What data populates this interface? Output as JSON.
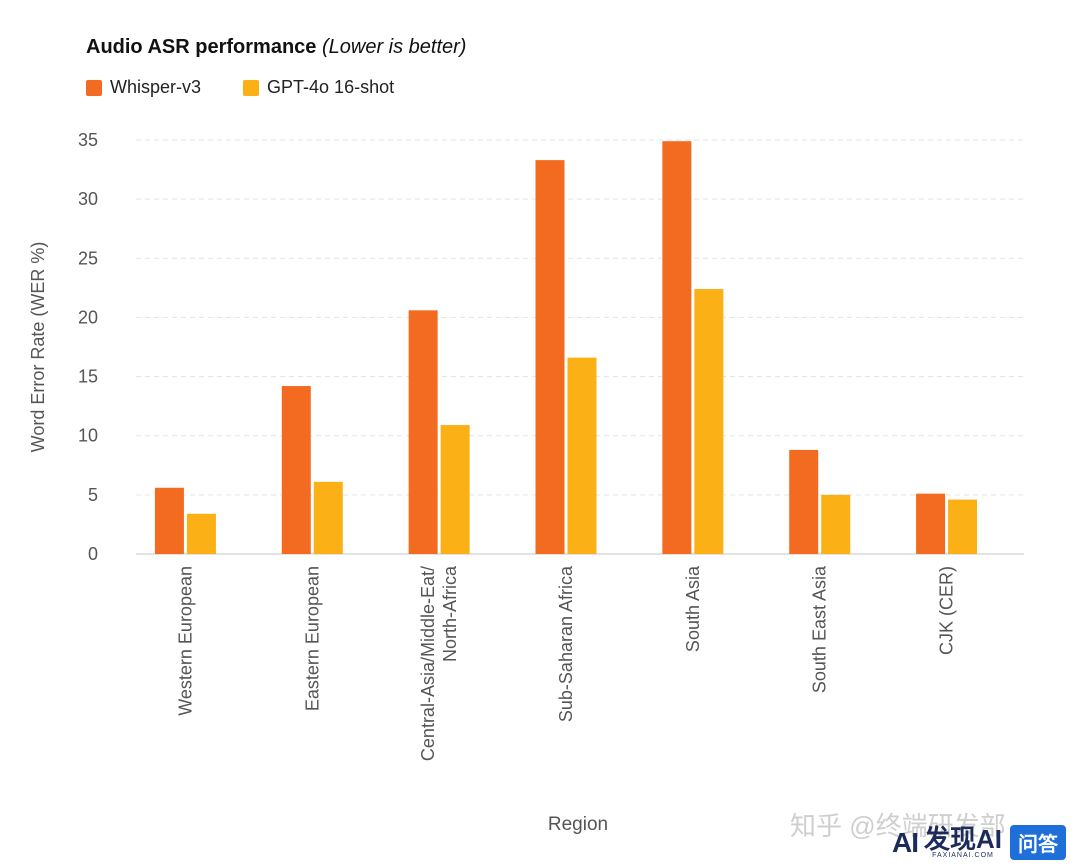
{
  "chart_data": {
    "type": "bar",
    "title": "Audio ASR performance",
    "subtitle": "(Lower is better)",
    "xlabel": "Region",
    "ylabel": "Word Error Rate (WER %)",
    "ylim": [
      0,
      35
    ],
    "yticks": [
      0,
      5,
      10,
      15,
      20,
      25,
      30,
      35
    ],
    "grid": true,
    "legend": "top-left",
    "categories": [
      [
        "Western European"
      ],
      [
        "Eastern European"
      ],
      [
        "Central-Asia/Middle-Eat/",
        "North-Africa"
      ],
      [
        "Sub-Saharan Africa"
      ],
      [
        "South Asia"
      ],
      [
        "South East Asia"
      ],
      [
        "CJK (CER)"
      ]
    ],
    "series": [
      {
        "name": "Whisper-v3",
        "color": "#f26b21",
        "values": [
          5.6,
          14.2,
          20.6,
          33.3,
          34.9,
          8.8,
          5.1
        ]
      },
      {
        "name": "GPT-4o 16-shot",
        "color": "#fbb016",
        "values": [
          3.4,
          6.1,
          10.9,
          16.6,
          22.4,
          5.0,
          4.6
        ]
      }
    ]
  },
  "watermark": {
    "zhihu": "知乎 @终端研发部",
    "brand_ai": "AI",
    "brand_name": "发现AI",
    "brand_domain": "FAXIANAI.COM",
    "badge": "问答"
  }
}
